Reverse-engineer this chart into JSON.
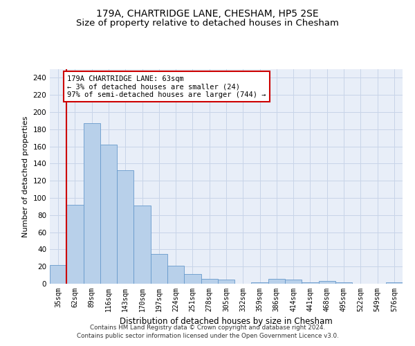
{
  "title": "179A, CHARTRIDGE LANE, CHESHAM, HP5 2SE",
  "subtitle": "Size of property relative to detached houses in Chesham",
  "xlabel": "Distribution of detached houses by size in Chesham",
  "ylabel": "Number of detached properties",
  "categories": [
    "35sqm",
    "62sqm",
    "89sqm",
    "116sqm",
    "143sqm",
    "170sqm",
    "197sqm",
    "224sqm",
    "251sqm",
    "278sqm",
    "305sqm",
    "332sqm",
    "359sqm",
    "386sqm",
    "414sqm",
    "441sqm",
    "468sqm",
    "495sqm",
    "522sqm",
    "549sqm",
    "576sqm"
  ],
  "values": [
    22,
    92,
    187,
    162,
    132,
    91,
    35,
    21,
    11,
    6,
    5,
    0,
    2,
    6,
    5,
    2,
    3,
    2,
    0,
    0,
    2
  ],
  "bar_color": "#b8d0ea",
  "bar_edge_color": "#6699cc",
  "vline_x": 0.5,
  "vline_color": "#cc0000",
  "annotation_text": "179A CHARTRIDGE LANE: 63sqm\n← 3% of detached houses are smaller (24)\n97% of semi-detached houses are larger (744) →",
  "annotation_box_color": "#cc0000",
  "ylim": [
    0,
    250
  ],
  "yticks": [
    0,
    20,
    40,
    60,
    80,
    100,
    120,
    140,
    160,
    180,
    200,
    220,
    240
  ],
  "grid_color": "#c8d4e8",
  "bg_color": "#e8eef8",
  "footnote1": "Contains HM Land Registry data © Crown copyright and database right 2024.",
  "footnote2": "Contains public sector information licensed under the Open Government Licence v3.0.",
  "title_fontsize": 10,
  "subtitle_fontsize": 9.5,
  "xlabel_fontsize": 8.5,
  "ylabel_fontsize": 8,
  "tick_fontsize": 7,
  "annot_fontsize": 7.5
}
